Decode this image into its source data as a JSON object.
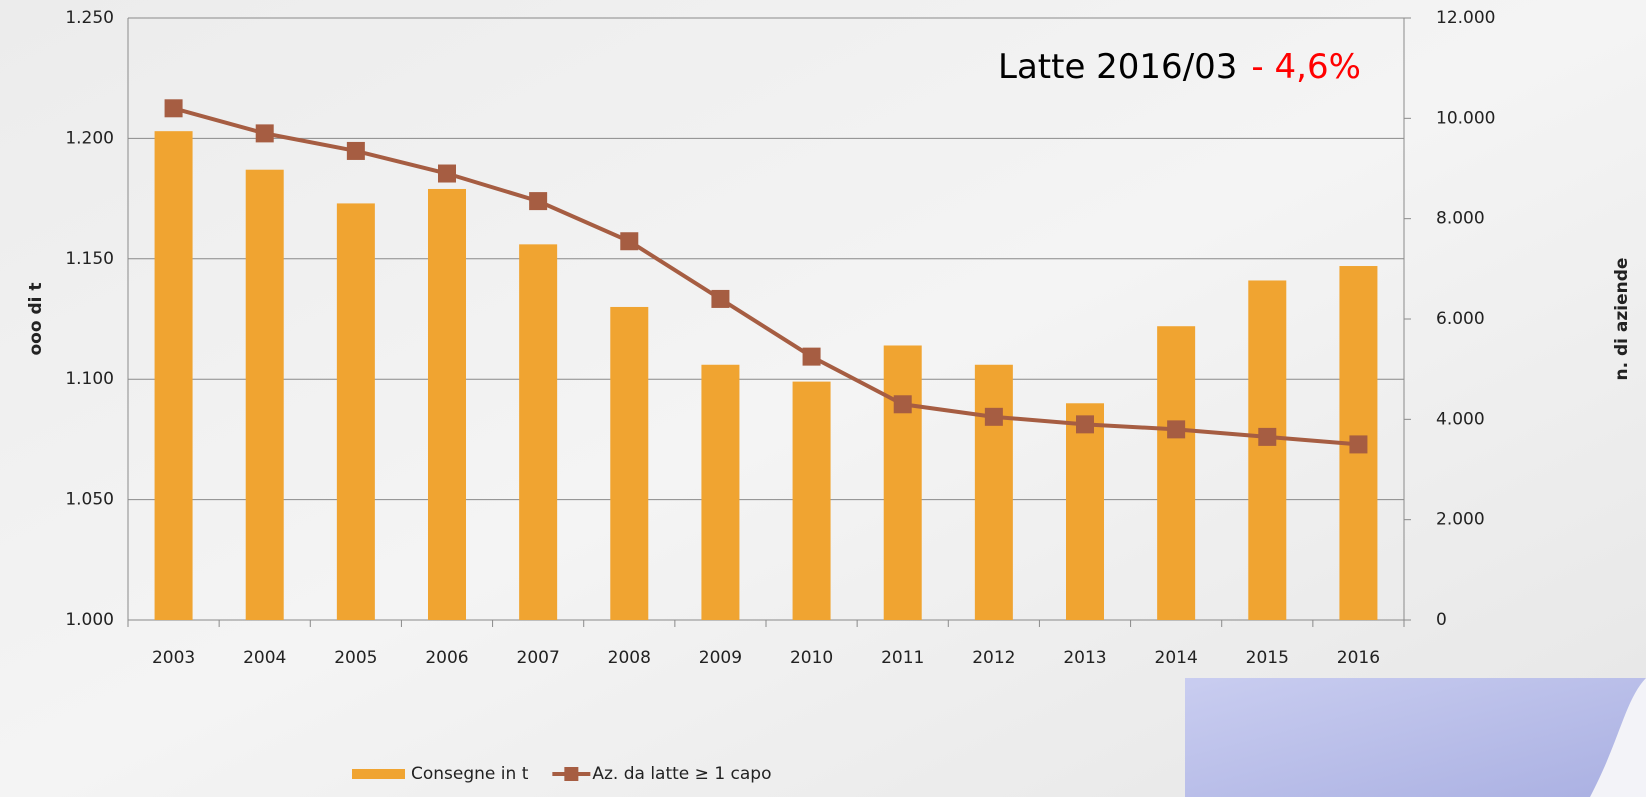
{
  "chart_data": {
    "type": "bar",
    "categories": [
      "2003",
      "2004",
      "2005",
      "2006",
      "2007",
      "2008",
      "2009",
      "2010",
      "2011",
      "2012",
      "2013",
      "2014",
      "2015",
      "2016"
    ],
    "series": [
      {
        "name": "Consegne in t",
        "type": "bar",
        "color": "#f0a431",
        "values": [
          1203,
          1187,
          1173,
          1179,
          1156,
          1130,
          1106,
          1099,
          1114,
          1106,
          1090,
          1122,
          1141,
          1147
        ]
      },
      {
        "name": "Az. da latte  ≥ 1 capo",
        "type": "line",
        "axis": "y2",
        "color": "#a65d42",
        "values": [
          10200,
          9700,
          9350,
          8900,
          8350,
          7550,
          6400,
          5250,
          4300,
          4050,
          3900,
          3800,
          3650,
          3500
        ]
      }
    ],
    "ylabel": "ooo di t",
    "y2label": "n. di aziende",
    "ylim": [
      1000,
      1250
    ],
    "yticks": [
      {
        "value": 1000,
        "label": "1.000"
      },
      {
        "value": 1050,
        "label": "1.050"
      },
      {
        "value": 1100,
        "label": "1.100"
      },
      {
        "value": 1150,
        "label": "1.150"
      },
      {
        "value": 1200,
        "label": "1.200"
      },
      {
        "value": 1250,
        "label": "1.250"
      }
    ],
    "y2lim": [
      0,
      12000
    ],
    "y2ticks": [
      0,
      {
        "value": 2000,
        "label": "2.000"
      },
      {
        "value": 4000,
        "label": "4.000"
      },
      {
        "value": 6000,
        "label": "6.000"
      },
      {
        "value": 8000,
        "label": "8.000"
      },
      {
        "value": 10000,
        "label": "10.000"
      },
      {
        "value": 12000,
        "label": "12.000"
      }
    ],
    "grid": true,
    "legend": "bottom",
    "annotations": [
      {
        "text": "Latte 2016/03",
        "color": "#000000"
      },
      {
        "text": "- 4,6%",
        "color": "#ff0000"
      }
    ]
  }
}
